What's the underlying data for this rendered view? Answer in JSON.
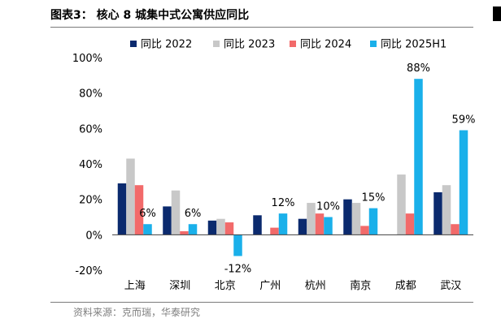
{
  "header": {
    "figure_label": "图表3：",
    "figure_title": "核心 8 城集中式公寓供应同比"
  },
  "footer": {
    "source": "资料来源：克而瑞，华泰研究"
  },
  "colors": {
    "series_2022": "#0b2a6e",
    "series_2023": "#c8c8c8",
    "series_2024": "#f26a6a",
    "series_2025H1": "#1ab0ea"
  },
  "chart_data": {
    "type": "bar",
    "title": "核心 8 城集中式公寓供应同比",
    "categories": [
      "上海",
      "深圳",
      "北京",
      "广州",
      "杭州",
      "南京",
      "成都",
      "武汉"
    ],
    "series": [
      {
        "name": "同比 2022",
        "values": [
          29,
          16,
          8,
          11,
          9,
          20,
          0,
          24
        ]
      },
      {
        "name": "同比 2023",
        "values": [
          43,
          25,
          9,
          0,
          18,
          18,
          34,
          28
        ]
      },
      {
        "name": "同比 2024",
        "values": [
          28,
          2,
          7,
          4,
          12,
          5,
          12,
          6
        ]
      },
      {
        "name": "同比 2025H1",
        "values": [
          6,
          6,
          -12,
          12,
          10,
          15,
          88,
          59
        ]
      }
    ],
    "data_labels": {
      "series": "同比 2025H1",
      "labels": [
        "6%",
        "6%",
        "-12%",
        "12%",
        "10%",
        "15%",
        "88%",
        "59%"
      ]
    },
    "yticks": [
      "100%",
      "80%",
      "60%",
      "40%",
      "20%",
      "0%",
      "-20%"
    ],
    "ylim": [
      -20,
      100
    ],
    "legend_position": "top",
    "grid": false
  }
}
